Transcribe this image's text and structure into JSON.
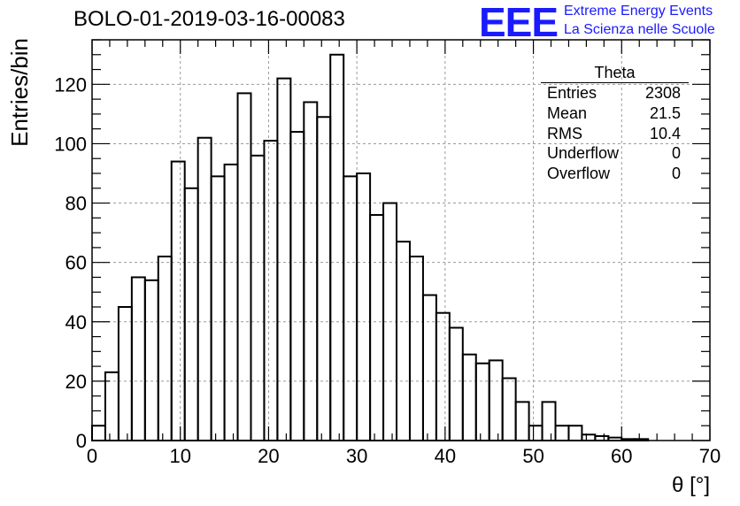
{
  "title": "BOLO-01-2019-03-16-00083",
  "logo": {
    "mark": "EEE",
    "line1": "Extreme Energy Events",
    "line2": "La Scienza nelle Scuole"
  },
  "stats": {
    "name": "Theta",
    "rows": [
      {
        "label": "Entries",
        "value": "2308"
      },
      {
        "label": "Mean",
        "value": "21.5"
      },
      {
        "label": "RMS",
        "value": "10.4"
      },
      {
        "label": "Underflow",
        "value": "0"
      },
      {
        "label": "Overflow",
        "value": "0"
      }
    ]
  },
  "chart_data": {
    "type": "bar",
    "title": "BOLO-01-2019-03-16-00083",
    "xlabel": "θ [°]",
    "ylabel": "Entries/bin",
    "xlim": [
      0,
      70
    ],
    "ylim": [
      0,
      135
    ],
    "grid": true,
    "bin_width": 1.5,
    "x_start": 0,
    "values": [
      5,
      23,
      45,
      55,
      54,
      62,
      94,
      85,
      102,
      89,
      93,
      117,
      96,
      101,
      122,
      104,
      114,
      109,
      130,
      89,
      90,
      76,
      80,
      67,
      62,
      49,
      43,
      38,
      29,
      26,
      27,
      21,
      13,
      5,
      13,
      5,
      5,
      2,
      1.5,
      1,
      0.5,
      0.5,
      0,
      0,
      0,
      0,
      0
    ],
    "x_ticks": [
      0,
      10,
      20,
      30,
      40,
      50,
      60,
      70
    ],
    "y_ticks": [
      0,
      20,
      40,
      60,
      80,
      100,
      120
    ],
    "line_color": "#000000",
    "grid_color": "#9a9a9a",
    "brand_color": "#1a1aff"
  }
}
